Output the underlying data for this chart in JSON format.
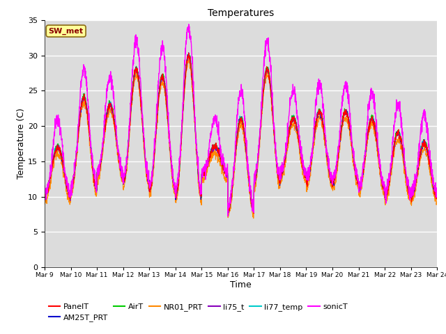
{
  "title": "Temperatures",
  "xlabel": "Time",
  "ylabel": "Temperature (C)",
  "ylim": [
    0,
    35
  ],
  "yticks": [
    0,
    5,
    10,
    15,
    20,
    25,
    30,
    35
  ],
  "num_days": 15,
  "annotation_text": "SW_met",
  "annotation_color": "#8B0000",
  "annotation_bg": "#FFFF99",
  "series": {
    "PanelT": {
      "color": "#FF0000",
      "lw": 0.8
    },
    "AM25T_PRT": {
      "color": "#0000CC",
      "lw": 0.8
    },
    "AirT": {
      "color": "#00CC00",
      "lw": 0.8
    },
    "NR01_PRT": {
      "color": "#FF8800",
      "lw": 0.8
    },
    "li75_t": {
      "color": "#8800BB",
      "lw": 0.8
    },
    "li77_temp": {
      "color": "#00CCCC",
      "lw": 0.8
    },
    "sonicT": {
      "color": "#FF00FF",
      "lw": 1.0
    }
  },
  "bg_color": "#DCDCDC",
  "fig_bg": "#FFFFFF",
  "daily_peaks": [
    17,
    24,
    23,
    28,
    27,
    30,
    17,
    21,
    28,
    21,
    22,
    22,
    21,
    19,
    17.5
  ],
  "daily_troughs": [
    10,
    11,
    13,
    12,
    11,
    10,
    13,
    8,
    12,
    13,
    12,
    12,
    11,
    10,
    10
  ],
  "pts_per_day": 144
}
